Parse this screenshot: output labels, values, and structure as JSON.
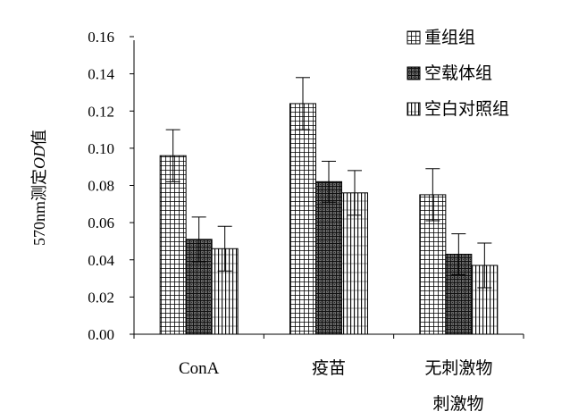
{
  "chart_data": {
    "type": "bar",
    "title": "",
    "xlabel": "",
    "ylabel": "570nm测定OD值",
    "ylabel_parts": {
      "prefix": "570nm测定",
      "italic": "OD",
      "suffix": "值"
    },
    "ylim": [
      0,
      0.16
    ],
    "yticks": [
      "0.00",
      "0.02",
      "0.04",
      "0.06",
      "0.08",
      "0.10",
      "0.12",
      "0.14",
      "0.16"
    ],
    "categories": [
      "ConA",
      "疫苗",
      "无刺激物"
    ],
    "extra_category_label": "刺激物",
    "grid": false,
    "legend_position": "top-right",
    "series": [
      {
        "name": "重组组",
        "values": [
          0.096,
          0.124,
          0.075
        ],
        "errors": [
          0.014,
          0.014,
          0.014
        ],
        "pattern": "grid",
        "color": "#ffffff"
      },
      {
        "name": "空载体组",
        "values": [
          0.051,
          0.082,
          0.043
        ],
        "errors": [
          0.012,
          0.011,
          0.011
        ],
        "pattern": "dark-cross",
        "color": "#555555"
      },
      {
        "name": "空白对照组",
        "values": [
          0.046,
          0.076,
          0.037
        ],
        "errors": [
          0.012,
          0.012,
          0.012
        ],
        "pattern": "vertical",
        "color": "#ffffff"
      }
    ]
  }
}
